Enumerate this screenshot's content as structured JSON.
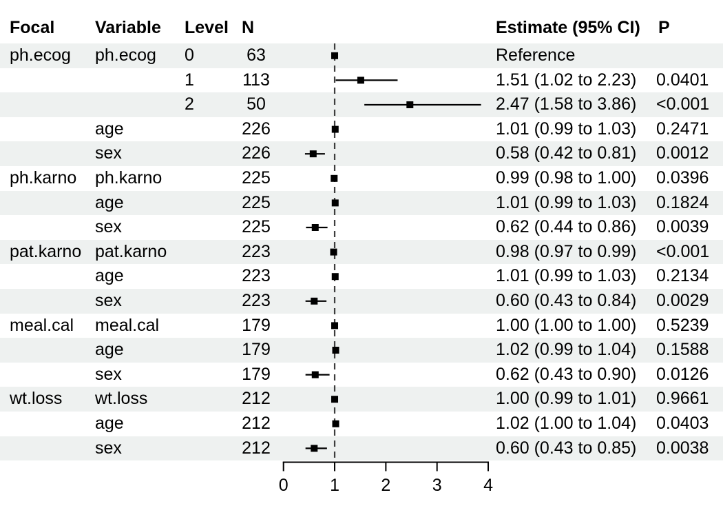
{
  "header": {
    "focal": "Focal",
    "variable": "Variable",
    "level": "Level",
    "n": "N",
    "estimate": "Estimate (95% CI)",
    "p": "P"
  },
  "colors": {
    "stripe": "#eef1f0",
    "text": "#000000",
    "line": "#000000",
    "ref_line": "#3d3d3d"
  },
  "chart_data": {
    "type": "scatter",
    "subtype": "forest-plot",
    "title": "",
    "xlabel": "",
    "ylabel": "",
    "xlim": [
      0,
      4
    ],
    "x_ticks": [
      "0",
      "1",
      "2",
      "3",
      "4"
    ],
    "ref_line": 1,
    "grid": false,
    "legend": "none",
    "columns": [
      "Focal",
      "Variable",
      "Level",
      "N",
      "Estimate (95% CI)",
      "P"
    ],
    "rows": [
      {
        "focal": "ph.ecog",
        "variable": "ph.ecog",
        "level": "0",
        "n": "63",
        "est": 1.0,
        "low": null,
        "high": null,
        "estimate_label": "Reference",
        "p": ""
      },
      {
        "focal": "",
        "variable": "",
        "level": "1",
        "n": "113",
        "est": 1.51,
        "low": 1.02,
        "high": 2.23,
        "estimate_label": "1.51 (1.02 to 2.23)",
        "p": "0.0401"
      },
      {
        "focal": "",
        "variable": "",
        "level": "2",
        "n": "50",
        "est": 2.47,
        "low": 1.58,
        "high": 3.86,
        "estimate_label": "2.47 (1.58 to 3.86)",
        "p": "<0.001"
      },
      {
        "focal": "",
        "variable": "age",
        "level": "",
        "n": "226",
        "est": 1.01,
        "low": 0.99,
        "high": 1.03,
        "estimate_label": "1.01 (0.99 to 1.03)",
        "p": "0.2471"
      },
      {
        "focal": "",
        "variable": "sex",
        "level": "",
        "n": "226",
        "est": 0.58,
        "low": 0.42,
        "high": 0.81,
        "estimate_label": "0.58 (0.42 to 0.81)",
        "p": "0.0012"
      },
      {
        "focal": "ph.karno",
        "variable": "ph.karno",
        "level": "",
        "n": "225",
        "est": 0.99,
        "low": 0.98,
        "high": 1.0,
        "estimate_label": "0.99 (0.98 to 1.00)",
        "p": "0.0396"
      },
      {
        "focal": "",
        "variable": "age",
        "level": "",
        "n": "225",
        "est": 1.01,
        "low": 0.99,
        "high": 1.03,
        "estimate_label": "1.01 (0.99 to 1.03)",
        "p": "0.1824"
      },
      {
        "focal": "",
        "variable": "sex",
        "level": "",
        "n": "225",
        "est": 0.62,
        "low": 0.44,
        "high": 0.86,
        "estimate_label": "0.62 (0.44 to 0.86)",
        "p": "0.0039"
      },
      {
        "focal": "pat.karno",
        "variable": "pat.karno",
        "level": "",
        "n": "223",
        "est": 0.98,
        "low": 0.97,
        "high": 0.99,
        "estimate_label": "0.98 (0.97 to 0.99)",
        "p": "<0.001"
      },
      {
        "focal": "",
        "variable": "age",
        "level": "",
        "n": "223",
        "est": 1.01,
        "low": 0.99,
        "high": 1.03,
        "estimate_label": "1.01 (0.99 to 1.03)",
        "p": "0.2134"
      },
      {
        "focal": "",
        "variable": "sex",
        "level": "",
        "n": "223",
        "est": 0.6,
        "low": 0.43,
        "high": 0.84,
        "estimate_label": "0.60 (0.43 to 0.84)",
        "p": "0.0029"
      },
      {
        "focal": "meal.cal",
        "variable": "meal.cal",
        "level": "",
        "n": "179",
        "est": 1.0,
        "low": 1.0,
        "high": 1.0,
        "estimate_label": "1.00 (1.00 to 1.00)",
        "p": "0.5239"
      },
      {
        "focal": "",
        "variable": "age",
        "level": "",
        "n": "179",
        "est": 1.02,
        "low": 0.99,
        "high": 1.04,
        "estimate_label": "1.02 (0.99 to 1.04)",
        "p": "0.1588"
      },
      {
        "focal": "",
        "variable": "sex",
        "level": "",
        "n": "179",
        "est": 0.62,
        "low": 0.43,
        "high": 0.9,
        "estimate_label": "0.62 (0.43 to 0.90)",
        "p": "0.0126"
      },
      {
        "focal": "wt.loss",
        "variable": "wt.loss",
        "level": "",
        "n": "212",
        "est": 1.0,
        "low": 0.99,
        "high": 1.01,
        "estimate_label": "1.00 (0.99 to 1.01)",
        "p": "0.9661"
      },
      {
        "focal": "",
        "variable": "age",
        "level": "",
        "n": "212",
        "est": 1.02,
        "low": 1.0,
        "high": 1.04,
        "estimate_label": "1.02 (1.00 to 1.04)",
        "p": "0.0403"
      },
      {
        "focal": "",
        "variable": "sex",
        "level": "",
        "n": "212",
        "est": 0.6,
        "low": 0.43,
        "high": 0.85,
        "estimate_label": "0.60 (0.43 to 0.85)",
        "p": "0.0038"
      }
    ]
  }
}
